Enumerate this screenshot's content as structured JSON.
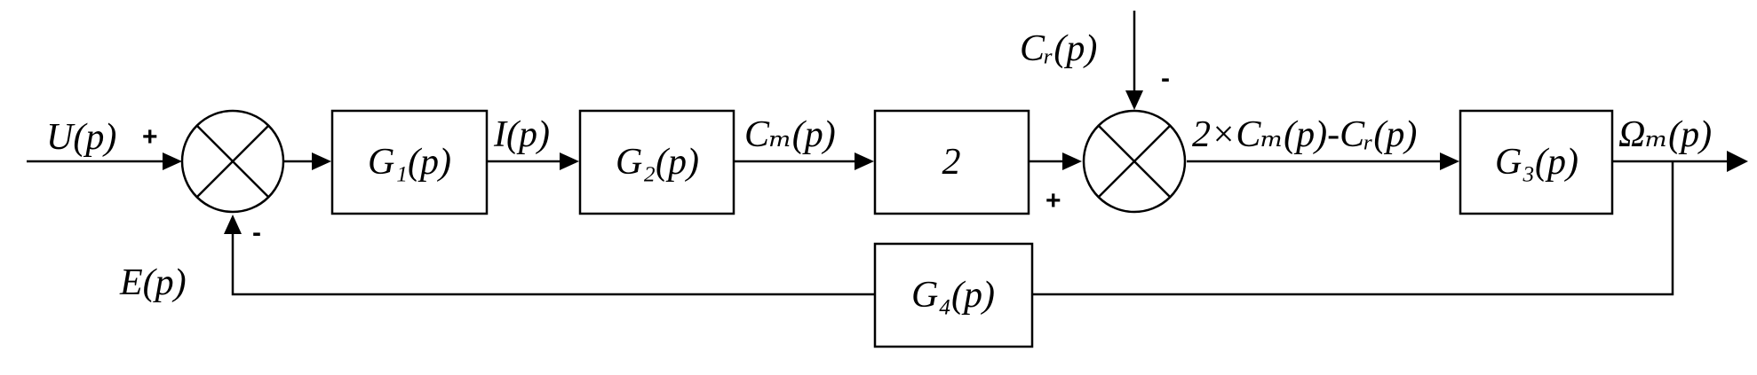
{
  "blocks": {
    "g1": "G₁(p)",
    "g2": "G₂(p)",
    "gain": "2",
    "g3": "G₃(p)",
    "g4": "G₄(p)"
  },
  "signals": {
    "input": "U(p)",
    "error": "E(p)",
    "current": "I(p)",
    "motor_torque": "Cₘ(p)",
    "load_torque": "Cᵣ(p)",
    "net_torque": "2×Cₘ(p)-Cᵣ(p)",
    "output": "Ωₘ(p)"
  },
  "signs": {
    "sum1_input": "+",
    "sum1_feedback": "-",
    "sum2_load": "-",
    "sum2_main": "+"
  }
}
